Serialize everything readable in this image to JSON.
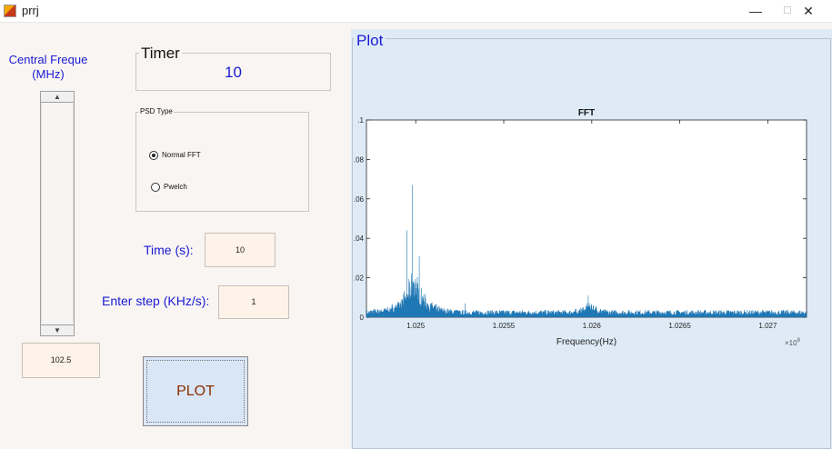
{
  "window": {
    "title": "prrj",
    "minimize": "—",
    "maximize": "☐",
    "close": "✕",
    "icon": "matlab-icon"
  },
  "freq_control": {
    "label_line1": "Central Freque",
    "label_line2": "(MHz)",
    "up_arrow": "▲",
    "down_arrow": "▼",
    "value": "102.5"
  },
  "timer": {
    "title": "Timer",
    "value": "10"
  },
  "psd": {
    "title": "PSD Type",
    "options": [
      {
        "label": "Normal FFT",
        "selected": true
      },
      {
        "label": "Pwelch",
        "selected": false
      }
    ]
  },
  "time_field": {
    "label": "Time (s):",
    "value": "10"
  },
  "step_field": {
    "label": "Enter step (KHz/s):",
    "value": "1"
  },
  "plot_button": {
    "label": "PLOT"
  },
  "plot_panel": {
    "title": "Plot"
  },
  "chart_data": {
    "type": "line",
    "title": "FFT",
    "xlabel": "Frequency(Hz)",
    "x_exponent_label": "×10",
    "x_exponent": "8",
    "ylabel": "",
    "xlim": [
      1.02472,
      1.02722
    ],
    "ylim": [
      0,
      0.1
    ],
    "xticks": [
      1.025,
      1.0255,
      1.026,
      1.0265,
      1.027
    ],
    "xtick_labels": [
      "1.025",
      "1.0255",
      "1.026",
      "1.0265",
      "1.027"
    ],
    "yticks": [
      0,
      0.02,
      0.04,
      0.06,
      0.08,
      0.1
    ],
    "ytick_labels": [
      "0",
      ".02",
      ".04",
      ".06",
      ".08",
      ".1"
    ],
    "series_color": "#1f77b4",
    "peaks": [
      {
        "x": 1.02498,
        "y": 0.067
      },
      {
        "x": 1.02495,
        "y": 0.044
      },
      {
        "x": 1.02502,
        "y": 0.031
      },
      {
        "x": 1.02528,
        "y": 0.007
      },
      {
        "x": 1.02598,
        "y": 0.011
      },
      {
        "x": 1.02601,
        "y": 0.006
      }
    ],
    "grid": false
  }
}
